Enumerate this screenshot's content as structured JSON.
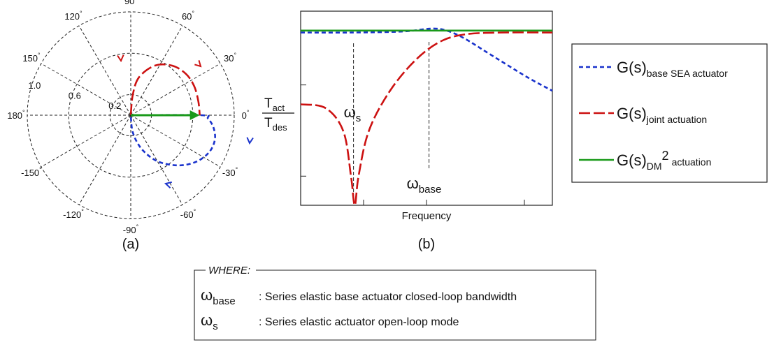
{
  "chart_data": [
    {
      "type": "polar",
      "caption": "(a)",
      "angle_labels": [
        {
          "deg": 90,
          "label": "90"
        },
        {
          "deg": 60,
          "label": "60"
        },
        {
          "deg": 30,
          "label": "30"
        },
        {
          "deg": 0,
          "label": "0"
        },
        {
          "deg": -30,
          "label": "-30"
        },
        {
          "deg": -60,
          "label": "-60"
        },
        {
          "deg": -90,
          "label": "-90"
        },
        {
          "deg": -120,
          "label": "-120"
        },
        {
          "deg": -150,
          "label": "-150"
        },
        {
          "deg": 180,
          "label": "180"
        },
        {
          "deg": 150,
          "label": "150"
        },
        {
          "deg": 120,
          "label": "120"
        }
      ],
      "degree_symbol": "°",
      "radial_labels": [
        "0.2",
        "0.6",
        "1.0"
      ],
      "radial_values": [
        0.2,
        0.6,
        1.0
      ],
      "series": [
        {
          "key": "joint",
          "color": "#cc1111",
          "dash": "long",
          "points": [
            [
              0.0,
              0.0
            ],
            [
              0.03,
              0.3
            ],
            [
              0.12,
              0.55
            ],
            [
              0.35,
              0.72
            ],
            [
              0.6,
              0.72
            ],
            [
              0.8,
              0.6
            ],
            [
              0.92,
              0.42
            ],
            [
              0.98,
              0.2
            ],
            [
              1.0,
              0.0
            ]
          ]
        },
        {
          "key": "base",
          "color": "#1a33cc",
          "dash": "short",
          "points": [
            [
              0.0,
              0.0
            ],
            [
              1.02,
              0.0
            ],
            [
              1.12,
              -0.05
            ],
            [
              1.2,
              -0.18
            ],
            [
              1.22,
              -0.35
            ],
            [
              1.15,
              -0.52
            ],
            [
              1.0,
              -0.65
            ],
            [
              0.8,
              -0.72
            ],
            [
              0.58,
              -0.72
            ],
            [
              0.35,
              -0.65
            ],
            [
              0.15,
              -0.48
            ],
            [
              0.03,
              -0.25
            ],
            [
              0.0,
              0.0
            ]
          ]
        },
        {
          "key": "dm2",
          "color": "#1a9a1a",
          "dash": "solid",
          "points": [
            [
              0.0,
              0.0
            ],
            [
              1.0,
              0.0
            ]
          ]
        }
      ]
    },
    {
      "type": "line",
      "caption": "(b)",
      "xlabel": "Frequency",
      "ylabel_num": "T",
      "ylabel_num_sub": "act",
      "ylabel_den": "T",
      "ylabel_den_sub": "des",
      "marker_s": "ω",
      "marker_s_sub": "s",
      "marker_base": "ω",
      "marker_base_sub": "base",
      "xscale": "log",
      "yscale": "log",
      "series": [
        {
          "key": "base",
          "color": "#1a33cc",
          "dash": "short",
          "points": [
            [
              0.0,
              0.89
            ],
            [
              0.2,
              0.89
            ],
            [
              0.4,
              0.895
            ],
            [
              0.52,
              0.91
            ],
            [
              0.58,
              0.9
            ],
            [
              0.65,
              0.86
            ],
            [
              0.75,
              0.78
            ],
            [
              0.9,
              0.66
            ],
            [
              1.0,
              0.59
            ]
          ]
        },
        {
          "key": "joint",
          "color": "#cc1111",
          "dash": "long",
          "points": [
            [
              0.0,
              0.52
            ],
            [
              0.1,
              0.5
            ],
            [
              0.17,
              0.38
            ],
            [
              0.2,
              0.15
            ],
            [
              0.215,
              0.0
            ],
            [
              0.23,
              0.15
            ],
            [
              0.27,
              0.38
            ],
            [
              0.35,
              0.58
            ],
            [
              0.45,
              0.74
            ],
            [
              0.55,
              0.84
            ],
            [
              0.65,
              0.88
            ],
            [
              0.8,
              0.89
            ],
            [
              1.0,
              0.89
            ]
          ]
        },
        {
          "key": "dm2",
          "color": "#1a9a1a",
          "dash": "solid",
          "points": [
            [
              0.0,
              0.9
            ],
            [
              1.0,
              0.9
            ]
          ]
        }
      ],
      "marker_x": {
        "s": 0.21,
        "base": 0.51
      }
    }
  ],
  "legend": {
    "items": [
      {
        "key": "base",
        "text": "G(s)",
        "sub": "base SEA actuator",
        "sup": ""
      },
      {
        "key": "joint",
        "text": "G(s)",
        "sub": "joint actuation",
        "sup": ""
      },
      {
        "key": "dm2",
        "text": "G(s)",
        "sub": "DM",
        "sup": "2",
        "sub2": "actuation"
      }
    ]
  },
  "where_box": {
    "title": "WHERE:",
    "rows": [
      {
        "sym": "ω",
        "sub": "base",
        "desc": ": Series elastic base actuator closed-loop bandwidth"
      },
      {
        "sym": "ω",
        "sub": "s",
        "desc": ":   Series elastic actuator open-loop mode"
      }
    ]
  }
}
